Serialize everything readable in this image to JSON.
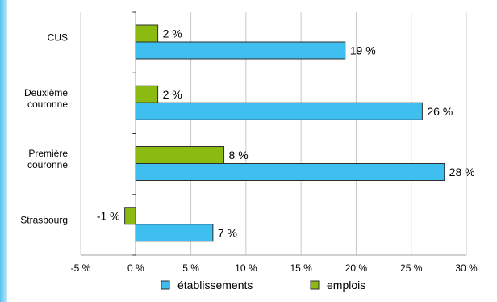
{
  "chart_data": {
    "type": "bar",
    "orientation": "horizontal",
    "categories": [
      "CUS",
      "Deuxième couronne",
      "Première couronne",
      "Strasbourg"
    ],
    "category_lines": [
      [
        "CUS"
      ],
      [
        "Deuxième",
        "couronne"
      ],
      [
        "Première",
        "couronne"
      ],
      [
        "Strasbourg"
      ]
    ],
    "series": [
      {
        "name": "établissements",
        "values": [
          19,
          26,
          28,
          7
        ],
        "labels": [
          "19 %",
          "26 %",
          "28 %",
          "7 %"
        ],
        "color": "#3ebff0"
      },
      {
        "name": "emplois",
        "values": [
          2,
          2,
          8,
          -1
        ],
        "labels": [
          "2 %",
          "2 %",
          "8 %",
          "-1 %"
        ],
        "color": "#8bbb10"
      }
    ],
    "xlim": [
      -5,
      30
    ],
    "xticks": [
      -5,
      0,
      5,
      10,
      15,
      20,
      25,
      30
    ],
    "xtick_labels": [
      "-5 %",
      "0 %",
      "5 %",
      "10 %",
      "15 %",
      "20 %",
      "25 %",
      "30 %"
    ],
    "grid": true,
    "legend_position": "bottom",
    "title": "",
    "xlabel": "",
    "ylabel": ""
  }
}
